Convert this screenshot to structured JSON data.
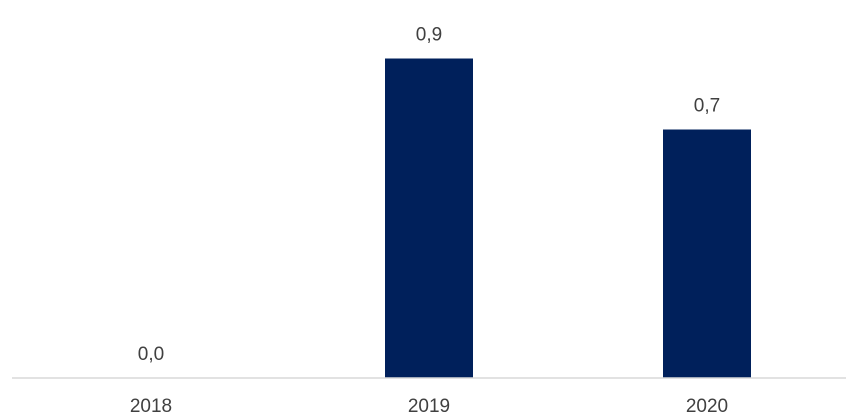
{
  "chart_data": {
    "type": "bar",
    "title": "",
    "xlabel": "",
    "ylabel": "",
    "categories": [
      "2018",
      "2019",
      "2020"
    ],
    "values": [
      0.0,
      0.9,
      0.7
    ],
    "value_labels": [
      "0,0",
      "0,9",
      "0,7"
    ],
    "ylim": [
      0,
      1.0
    ],
    "grid": false,
    "legend": "none",
    "bar_color": "#00205B",
    "axis_color": "#D9D9D9",
    "text_color": "#404040"
  }
}
